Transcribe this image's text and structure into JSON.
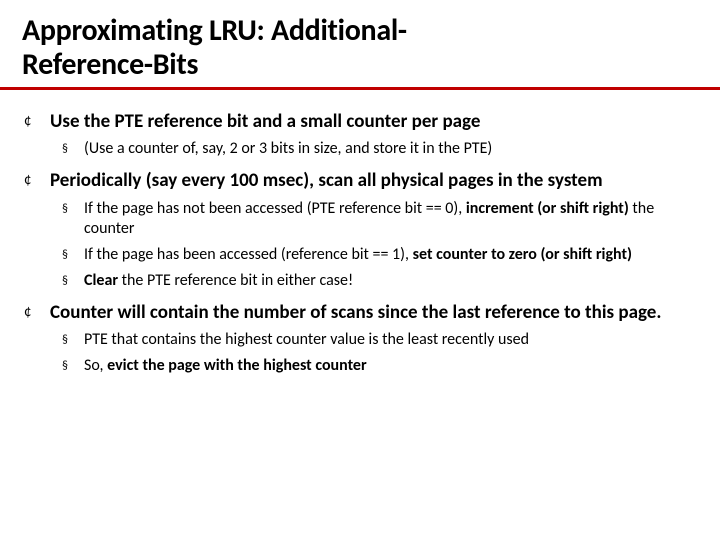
{
  "colors": {
    "rule": "#c00000",
    "text": "#000000",
    "background": "#ffffff"
  },
  "typography": {
    "title_fontsize": 30,
    "l1_fontsize": 19,
    "l2_fontsize": 16,
    "title_weight": 700,
    "l1_weight": 700,
    "font_family": "Calibri"
  },
  "title_line1": "Approximating LRU:   Additional-",
  "title_line2": " Reference-Bits",
  "bullets": {
    "b1": {
      "pre": "Use the PTE reference bit and a small ",
      "bold": "counter",
      "post": " per page",
      "sub1": "(Use a counter of, say, 2 or 3 bits in size, and store it in the PTE)"
    },
    "b2": {
      "text": "Periodically (say every 100 msec), scan all physical pages in the system",
      "sub1_pre": "If the page has not been accessed (PTE reference bit == 0), ",
      "sub1_bold": "increment (or shift right) ",
      "sub1_post": "the counter",
      "sub2_pre": "If the page has been accessed (reference bit == 1), ",
      "sub2_bold": "set counter to zero (or shift right)",
      "sub3_bold": "Clear",
      "sub3_post": " the PTE reference bit in either case!"
    },
    "b3": {
      "text": "Counter will contain the number of scans since the last reference to this page.",
      "sub1": "PTE that contains the highest counter value is the least recently used",
      "sub2_pre": "So, ",
      "sub2_bold": "evict the page with the highest counter"
    }
  },
  "glyphs": {
    "circle": "¢",
    "square": "§"
  }
}
